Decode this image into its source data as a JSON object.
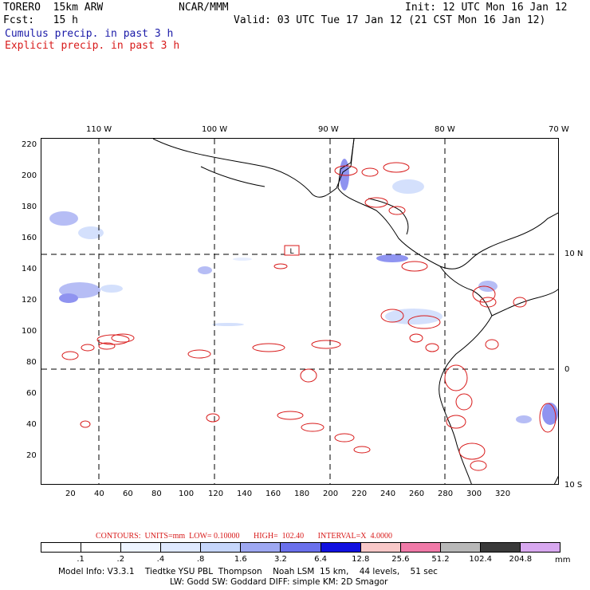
{
  "header": {
    "model": "TORERO  15km ARW",
    "center": "NCAR/MMM",
    "init": "Init: 12 UTC Mon 16 Jan 12",
    "fcst": "Fcst:   15 h",
    "valid": "Valid: 03 UTC Tue 17 Jan 12 (21 CST Mon 16 Jan 12)",
    "cumulus_label": "Cumulus precip. in past 3 h",
    "explicit_label": "Explicit precip. in past 3 h"
  },
  "colors": {
    "cumulus": "#1a1aa8",
    "explicit": "#d81a1a",
    "coast": "#000000",
    "gridline": "#000000"
  },
  "map": {
    "top_lon_labels": [
      "110 W",
      "100 W",
      "90 W",
      "80 W",
      "70 W"
    ],
    "right_lat_labels": [
      "10 N",
      "0",
      "10 S"
    ],
    "y_ticks": [
      "220",
      "200",
      "180",
      "160",
      "140",
      "120",
      "100",
      "80",
      "60",
      "40",
      "20"
    ],
    "x_ticks": [
      "20",
      "40",
      "60",
      "80",
      "100",
      "120",
      "140",
      "160",
      "180",
      "200",
      "220",
      "240",
      "260",
      "280",
      "300",
      "320"
    ],
    "low_marker": "L"
  },
  "legend": {
    "contours_text": "CONTOURS:  UNITS=mm  LOW= 0.10000       HIGH=  102.40       INTERVAL=X  4.0000",
    "levels": [
      ".1",
      ".2",
      ".4",
      ".8",
      "1.6",
      "3.2",
      "6.4",
      "12.8",
      "25.6",
      "51.2",
      "102.4",
      "204.8"
    ],
    "unit": "mm",
    "colors": [
      "#ffffff",
      "#ffffff",
      "#eef4ff",
      "#dfe9ff",
      "#c6d6fb",
      "#9ea8f2",
      "#6a70ec",
      "#1010e0",
      "#f8c8c8",
      "#f07aa8",
      "#b8b8b8",
      "#3a3a3a",
      "#d8a8f0"
    ]
  },
  "footer": {
    "line1": "Model Info: V3.3.1    Tiedtke YSU PBL  Thompson    Noah LSM  15 km,    44 levels,    51 sec",
    "line2": "LW: Godd SW: Goddard DIFF: simple KM: 2D Smagor"
  }
}
